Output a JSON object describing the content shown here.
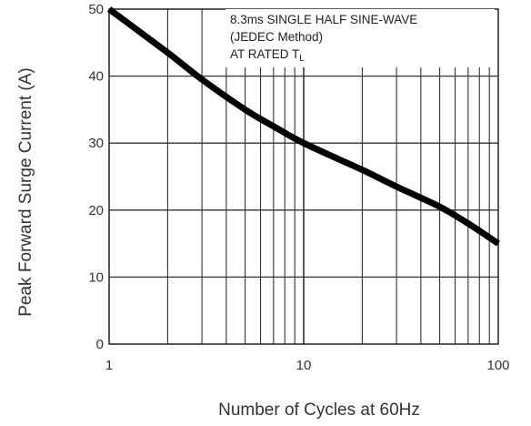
{
  "chart_data": {
    "type": "line",
    "xlabel": "Number of Cycles at 60Hz",
    "ylabel": "Peak Forward Surge Current (A)",
    "xscale": "log",
    "xlim": [
      1,
      100
    ],
    "ylim": [
      0,
      50
    ],
    "x_ticks": [
      "1",
      "10",
      "100"
    ],
    "y_ticks": [
      "0",
      "10",
      "20",
      "30",
      "40",
      "50"
    ],
    "grid": true,
    "annotation": {
      "line1": "8.3ms SINGLE HALF SINE-WAVE",
      "line2": "(JEDEC Method)",
      "line3_main": "AT RATED T",
      "line3_sub": "L"
    },
    "series": [
      {
        "x": [
          1,
          2,
          3,
          5,
          7,
          10,
          20,
          30,
          50,
          70,
          100
        ],
        "y": [
          50,
          43.5,
          39.5,
          35,
          32.5,
          30,
          26,
          23.5,
          20.5,
          18,
          15
        ]
      }
    ],
    "line_color": "#000000"
  }
}
